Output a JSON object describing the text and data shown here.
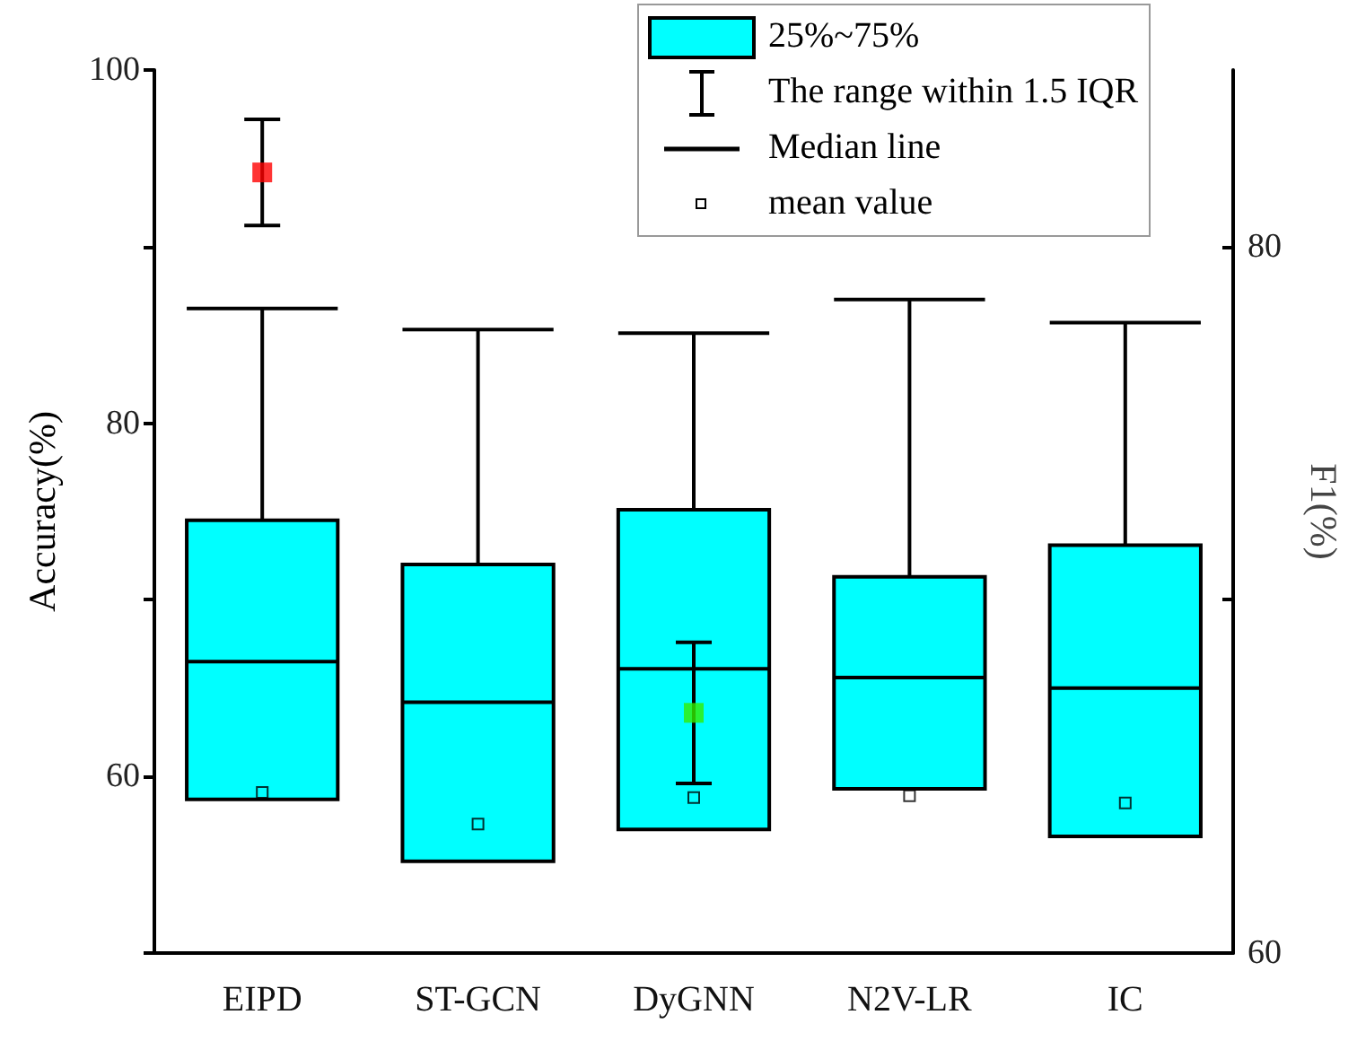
{
  "chart_data": {
    "type": "box",
    "ylabel": "Accuracy(%)",
    "y2label": "F1(%)",
    "categories": [
      "EIPD",
      "ST-GCN",
      "DyGNN",
      "N2V-LR",
      "IC"
    ],
    "color": "#00ffff",
    "boxes": [
      {
        "low": 58.7,
        "q1": 58.7,
        "median": 66.5,
        "q3": 74.5,
        "high": 86.5,
        "mean": 59.1
      },
      {
        "low": 55.2,
        "q1": 55.2,
        "median": 64.2,
        "q3": 72.0,
        "high": 85.3,
        "mean": 57.3
      },
      {
        "low": 57.0,
        "q1": 57.0,
        "median": 66.1,
        "q3": 75.1,
        "high": 85.1,
        "mean": 58.8
      },
      {
        "low": 59.3,
        "q1": 59.3,
        "median": 65.6,
        "q3": 71.3,
        "high": 87.0,
        "mean": 58.9
      },
      {
        "low": 56.6,
        "q1": 56.6,
        "median": 65.0,
        "q3": 73.1,
        "high": 85.7,
        "mean": 58.5
      }
    ],
    "series": [
      {
        "type": "scatter",
        "axis": "y2",
        "color": "#ff0000",
        "x": [
          "EIPD"
        ],
        "values": [
          82.1
        ],
        "errors": [
          [
            80.6,
            83.6
          ]
        ]
      },
      {
        "type": "scatter",
        "axis": "y2",
        "color": "#33ee00",
        "x": [
          "DyGNN"
        ],
        "values": [
          66.8
        ],
        "errors": [
          [
            64.8,
            68.8
          ]
        ]
      }
    ],
    "ylim": [
      50,
      100
    ],
    "yticks": [
      {
        "value": 50,
        "label": null
      },
      60,
      {
        "value": 70,
        "label": null
      },
      80,
      {
        "value": 90,
        "label": null
      },
      100
    ],
    "y2lim": [
      60,
      85
    ],
    "y2ticks": [
      60,
      {
        "value": 70,
        "label": null
      },
      80
    ],
    "annotations": [
      "25%~75%",
      "The range within 1.5 IQR",
      "Median line",
      "mean value"
    ],
    "marker": "square",
    "grid": false
  }
}
